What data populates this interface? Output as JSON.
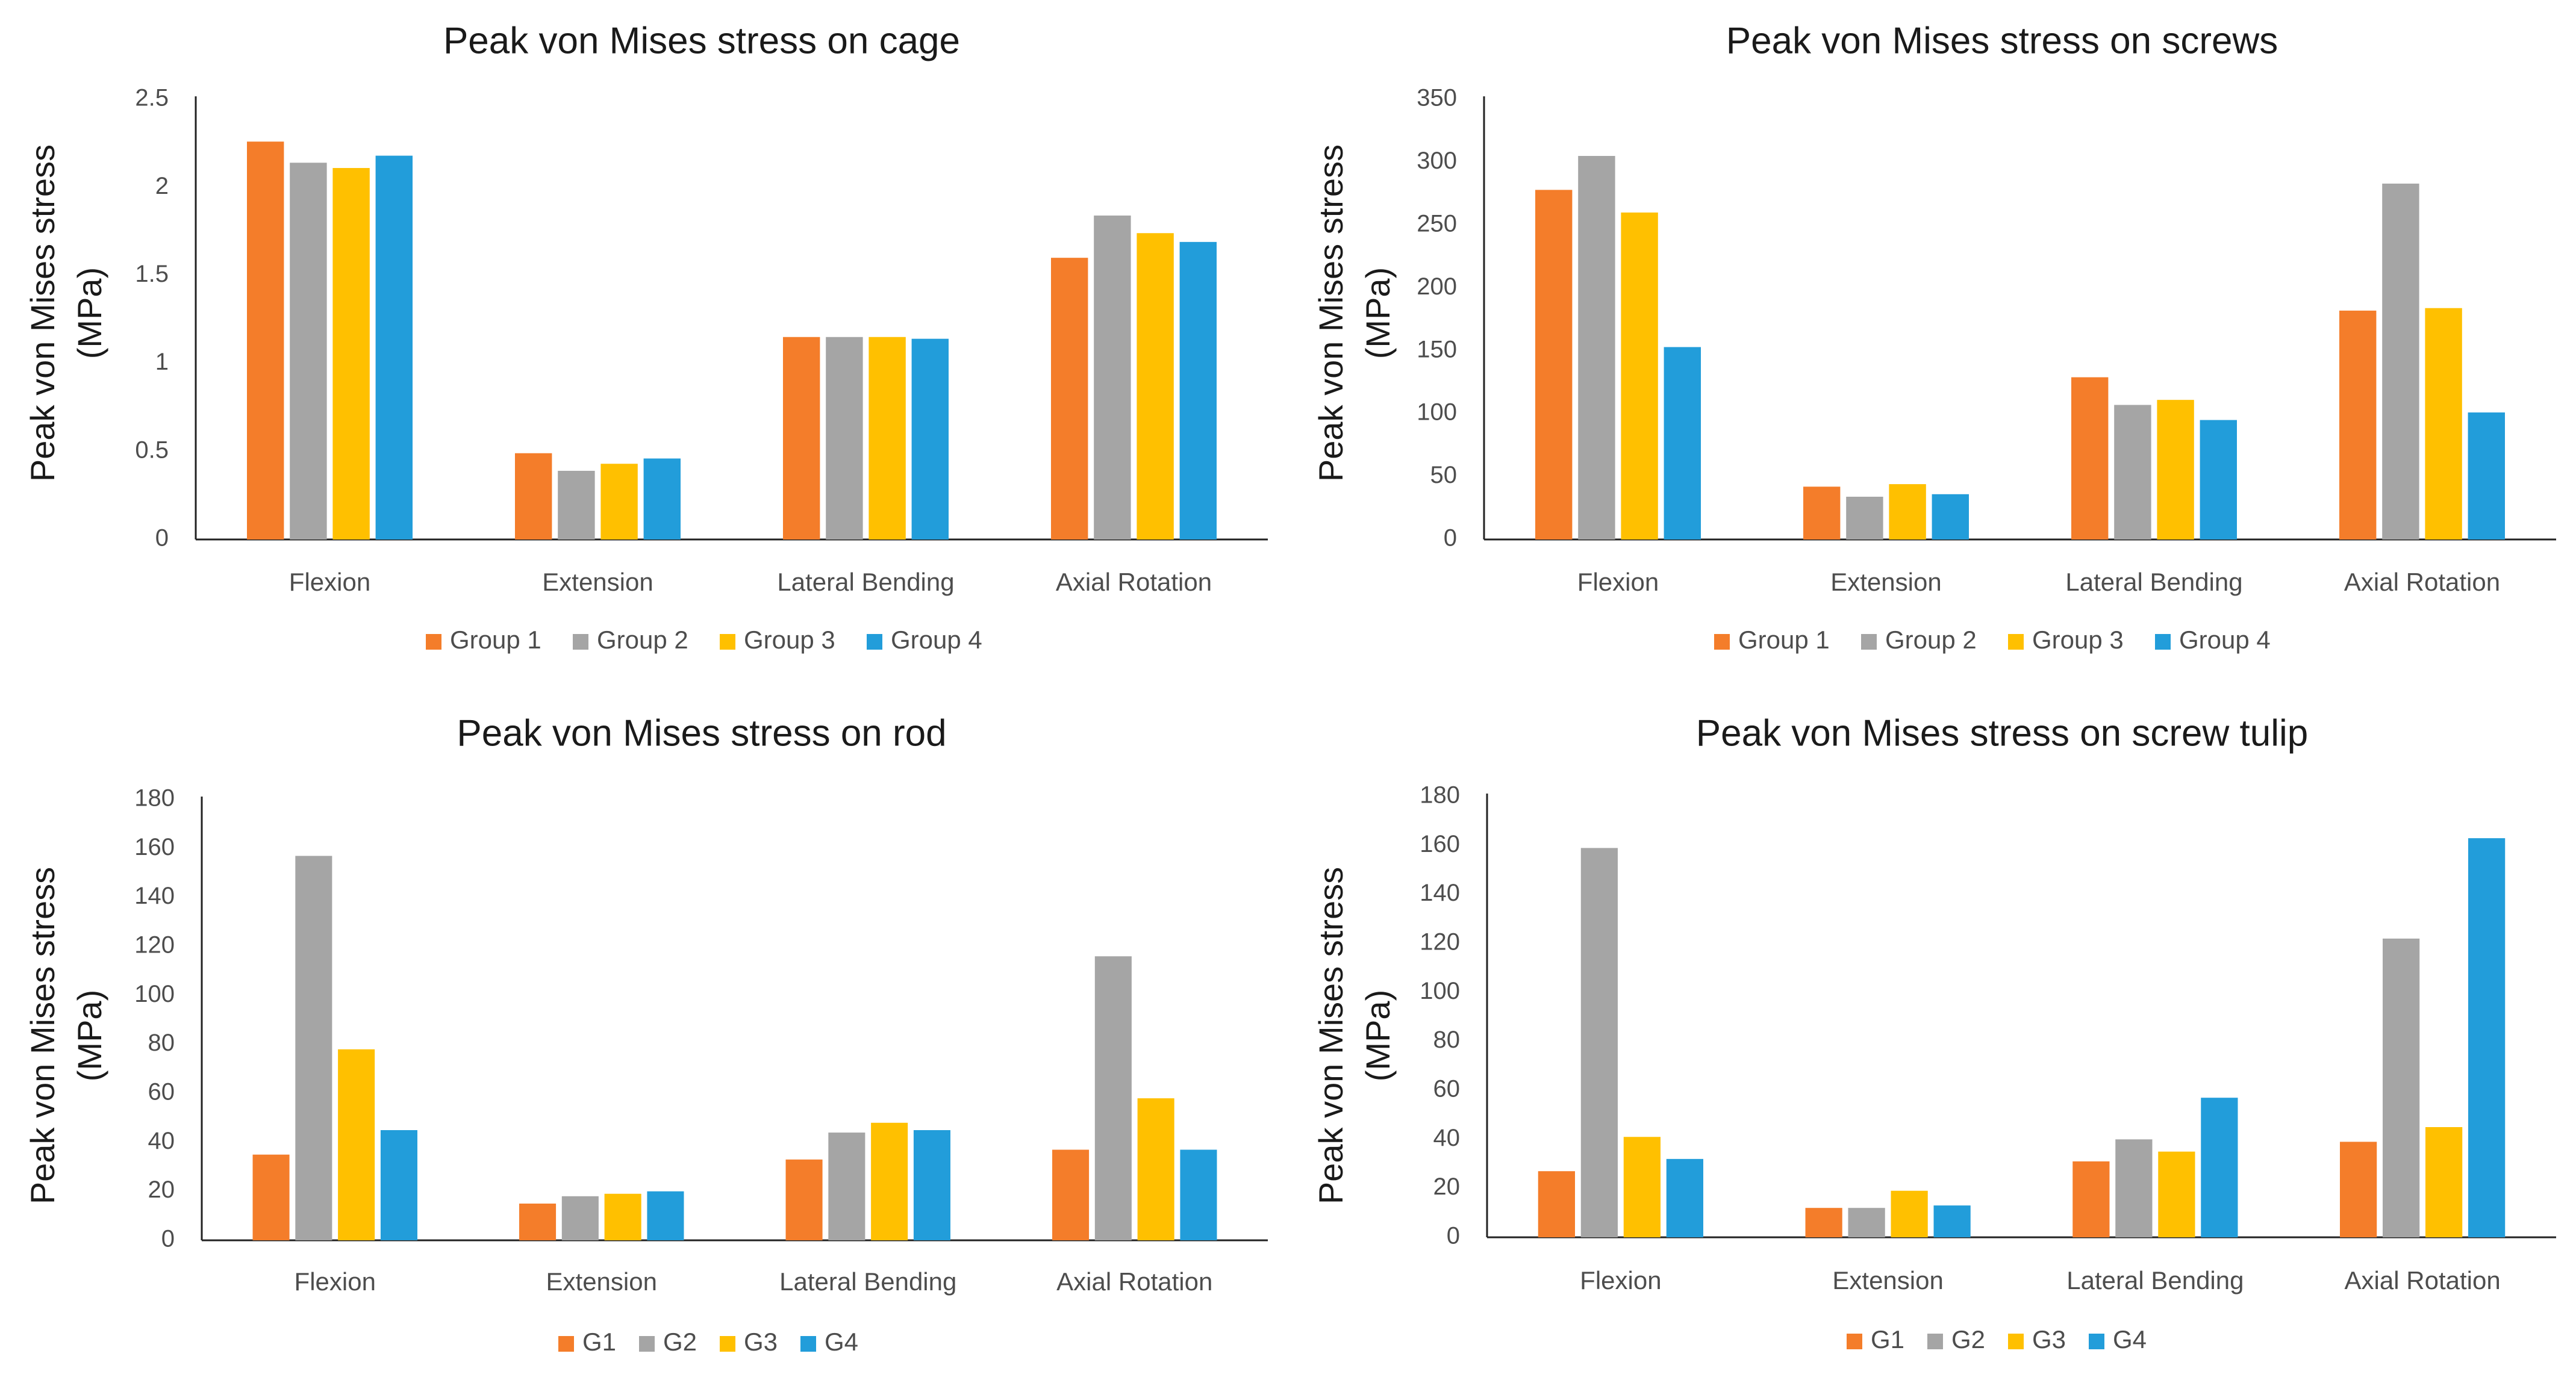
{
  "chart_data": [
    {
      "type": "bar",
      "title": "Peak von Mises stress on cage",
      "ylabel_lines": [
        "Peak von Mises stress",
        "(MPa)"
      ],
      "xlabel": "",
      "categories": [
        "Flexion",
        "Extension",
        "Lateral Bending",
        "Axial Rotation"
      ],
      "ylim": [
        0,
        2.5
      ],
      "yticks": [
        "0",
        "0.5",
        "1",
        "1.5",
        "2",
        "2.5"
      ],
      "series": [
        {
          "name": "Group 1",
          "color": "#F47D2A",
          "values": [
            2.26,
            0.49,
            1.15,
            1.6
          ]
        },
        {
          "name": "Group 2",
          "color": "#A5A5A5",
          "values": [
            2.14,
            0.39,
            1.15,
            1.84
          ]
        },
        {
          "name": "Group 3",
          "color": "#FFC000",
          "values": [
            2.11,
            0.43,
            1.15,
            1.74
          ]
        },
        {
          "name": "Group 4",
          "color": "#229DDA",
          "values": [
            2.18,
            0.46,
            1.14,
            1.69
          ]
        }
      ],
      "legend_position": "bottom"
    },
    {
      "type": "bar",
      "title": "Peak von Mises stress on screws",
      "ylabel_lines": [
        "Peak von Mises stress",
        "(MPa)"
      ],
      "xlabel": "",
      "categories": [
        "Flexion",
        "Extension",
        "Lateral Bending",
        "Axial Rotation"
      ],
      "ylim": [
        0,
        350
      ],
      "yticks": [
        "0",
        "50",
        "100",
        "150",
        "200",
        "250",
        "300",
        "350"
      ],
      "series": [
        {
          "name": "Group 1",
          "color": "#F47D2A",
          "values": [
            278,
            42,
            129,
            182
          ]
        },
        {
          "name": "Group 2",
          "color": "#A5A5A5",
          "values": [
            305,
            34,
            107,
            283
          ]
        },
        {
          "name": "Group 3",
          "color": "#FFC000",
          "values": [
            260,
            44,
            111,
            184
          ]
        },
        {
          "name": "Group 4",
          "color": "#229DDA",
          "values": [
            153,
            36,
            95,
            101
          ]
        }
      ],
      "legend_position": "bottom"
    },
    {
      "type": "bar",
      "title": "Peak von Mises stress on rod",
      "ylabel_lines": [
        "Peak von Mises stress",
        "(MPa)"
      ],
      "xlabel": "",
      "categories": [
        "Flexion",
        "Extension",
        "Lateral Bending",
        "Axial Rotation"
      ],
      "ylim": [
        0,
        180
      ],
      "yticks": [
        "0",
        "20",
        "40",
        "60",
        "80",
        "100",
        "120",
        "140",
        "160",
        "180"
      ],
      "series": [
        {
          "name": "G1",
          "color": "#F47D2A",
          "values": [
            35,
            15,
            33,
            37
          ]
        },
        {
          "name": "G2",
          "color": "#A5A5A5",
          "values": [
            157,
            18,
            44,
            116
          ]
        },
        {
          "name": "G3",
          "color": "#FFC000",
          "values": [
            78,
            19,
            48,
            58
          ]
        },
        {
          "name": "G4",
          "color": "#229DDA",
          "values": [
            45,
            20,
            45,
            37
          ]
        }
      ],
      "legend_position": "bottom"
    },
    {
      "type": "bar",
      "title": "Peak von Mises stress on screw tulip",
      "ylabel_lines": [
        "Peak von Mises stress",
        "(MPa)"
      ],
      "xlabel": "",
      "categories": [
        "Flexion",
        "Extension",
        "Lateral Bending",
        "Axial Rotation"
      ],
      "ylim": [
        0,
        180
      ],
      "yticks": [
        "0",
        "20",
        "40",
        "60",
        "80",
        "100",
        "120",
        "140",
        "160",
        "180"
      ],
      "series": [
        {
          "name": "G1",
          "color": "#F47D2A",
          "values": [
            27,
            12,
            31,
            39
          ]
        },
        {
          "name": "G2",
          "color": "#A5A5A5",
          "values": [
            159,
            12,
            40,
            122
          ]
        },
        {
          "name": "G3",
          "color": "#FFC000",
          "values": [
            41,
            19,
            35,
            45
          ]
        },
        {
          "name": "G4",
          "color": "#229DDA",
          "values": [
            32,
            13,
            57,
            163
          ]
        }
      ],
      "legend_position": "bottom"
    }
  ]
}
